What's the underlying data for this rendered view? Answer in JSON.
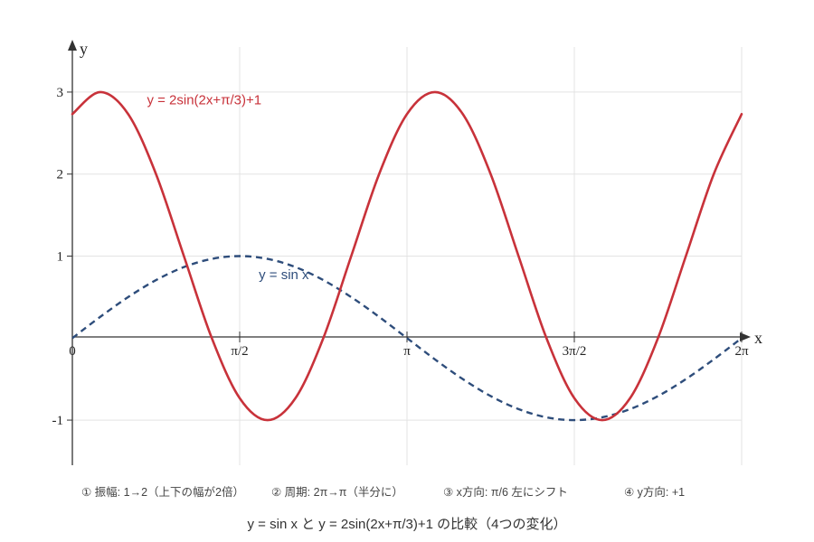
{
  "chart_data": {
    "type": "line",
    "title": "y = sin x と y = 2sin(2x+π/3)+1 の比較（4つの変化）",
    "xlabel": "x",
    "ylabel": "y",
    "xlim": [
      0,
      6.2832
    ],
    "ylim": [
      -1.55,
      3.55
    ],
    "x_ticks": [
      {
        "value": 0,
        "label": "0"
      },
      {
        "value": 1.5708,
        "label": "π/2"
      },
      {
        "value": 3.1416,
        "label": "π"
      },
      {
        "value": 4.7124,
        "label": "3π/2"
      },
      {
        "value": 6.2832,
        "label": "2π"
      }
    ],
    "y_ticks": [
      {
        "value": -1,
        "label": "-1"
      },
      {
        "value": 1,
        "label": "1"
      },
      {
        "value": 2,
        "label": "2"
      },
      {
        "value": 3,
        "label": "3"
      }
    ],
    "grid": true,
    "series": [
      {
        "name": "y = 2sin(2x+π/3)+1",
        "color": "#c8323a",
        "style": "solid",
        "label_anchor": {
          "x": 0.7,
          "y": 2.85
        },
        "x": [
          0,
          0.2618,
          0.5236,
          0.7854,
          1.0472,
          1.309,
          1.5708,
          1.8326,
          2.0944,
          2.3562,
          2.618,
          2.8798,
          3.1416,
          3.4034,
          3.6652,
          3.927,
          4.1888,
          4.4506,
          4.7124,
          4.9742,
          5.236,
          5.4978,
          5.7596,
          6.0214,
          6.2832
        ],
        "y": [
          2.732,
          3.0,
          2.732,
          2.0,
          1.0,
          0.0,
          -0.732,
          -1.0,
          -0.732,
          0.0,
          1.0,
          2.0,
          2.732,
          3.0,
          2.732,
          2.0,
          1.0,
          0.0,
          -0.732,
          -1.0,
          -0.732,
          0.0,
          1.0,
          2.0,
          2.732
        ]
      },
      {
        "name": "y = sin x",
        "color": "#2e4d7b",
        "style": "dashed",
        "label_anchor": {
          "x": 1.75,
          "y": 0.72
        },
        "x": [
          0,
          0.2618,
          0.5236,
          0.7854,
          1.0472,
          1.309,
          1.5708,
          1.8326,
          2.0944,
          2.3562,
          2.618,
          2.8798,
          3.1416,
          3.4034,
          3.6652,
          3.927,
          4.1888,
          4.4506,
          4.7124,
          4.9742,
          5.236,
          5.4978,
          5.7596,
          6.0214,
          6.2832
        ],
        "y": [
          0.0,
          0.259,
          0.5,
          0.707,
          0.866,
          0.966,
          1.0,
          0.966,
          0.866,
          0.707,
          0.5,
          0.259,
          0.0,
          -0.259,
          -0.5,
          -0.707,
          -0.866,
          -0.966,
          -1.0,
          -0.966,
          -0.866,
          -0.707,
          -0.5,
          -0.259,
          0.0
        ]
      }
    ]
  },
  "notes": [
    "① 振幅: 1→2（上下の幅が2倍）",
    "② 周期: 2π→π（半分に）",
    "③ x方向: π/6 左にシフト",
    "④ y方向: +1"
  ],
  "footer_title": "y = sin x と y = 2sin(2x+π/3)+1 の比較（4つの変化）"
}
